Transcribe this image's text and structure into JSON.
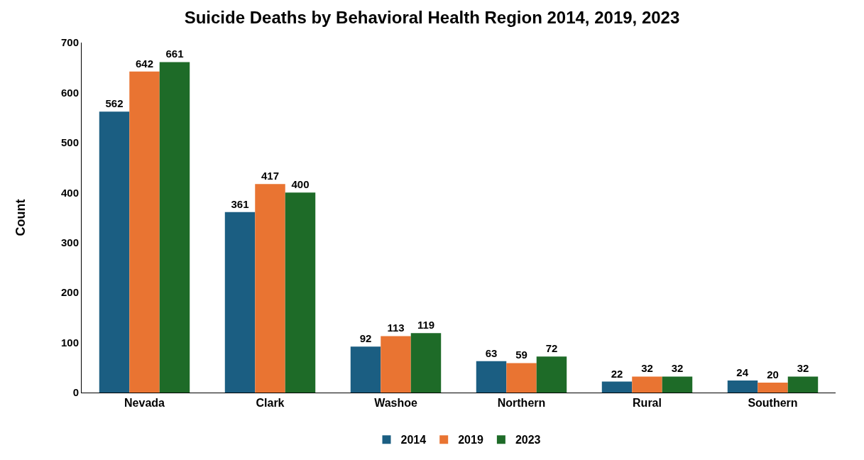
{
  "chart_data": {
    "type": "bar",
    "title": "Suicide Deaths by Behavioral Health Region 2014, 2019, 2023",
    "ylabel": "Count",
    "categories": [
      "Nevada",
      "Clark",
      "Washoe",
      "Northern",
      "Rural",
      "Southern"
    ],
    "series": [
      {
        "name": "2014",
        "color": "#1b5e82",
        "values": [
          562,
          361,
          92,
          63,
          22,
          24
        ]
      },
      {
        "name": "2019",
        "color": "#e97432",
        "values": [
          642,
          417,
          113,
          59,
          32,
          20
        ]
      },
      {
        "name": "2023",
        "color": "#1e6b28",
        "values": [
          661,
          400,
          119,
          72,
          32,
          32
        ]
      }
    ],
    "ylim": [
      0,
      700
    ],
    "yticks": [
      0,
      100,
      200,
      300,
      400,
      500,
      600,
      700
    ],
    "grid": false,
    "legend": "bottom",
    "data_labels": true
  }
}
